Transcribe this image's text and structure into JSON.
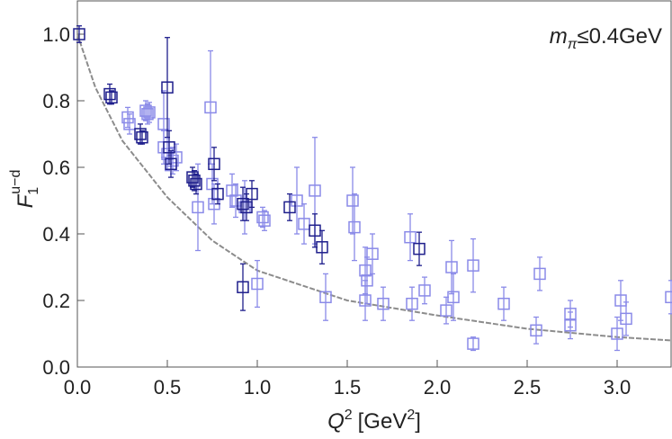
{
  "chart_data": {
    "type": "scatter",
    "xlabel": {
      "main": "Q",
      "sup": "2",
      "unit": "[GeV",
      "unit_sup": "2",
      "close": "]"
    },
    "ylabel": {
      "main": "F",
      "sub": "1",
      "sup": "u−d"
    },
    "annotation": {
      "main": "m",
      "sub": "π",
      "rest": "≤0.4GeV"
    },
    "xlim": [
      0,
      3.3
    ],
    "ylim": [
      0,
      1.1
    ],
    "xticks": [
      {
        "value": 0,
        "label": "0.0"
      },
      {
        "value": 0.5,
        "label": "0.5"
      },
      {
        "value": 1,
        "label": "1.0"
      },
      {
        "value": 1.5,
        "label": "1.5"
      },
      {
        "value": 2,
        "label": "2.0"
      },
      {
        "value": 2.5,
        "label": "2.5"
      },
      {
        "value": 3,
        "label": "3.0"
      }
    ],
    "yticks": [
      {
        "value": 0,
        "label": "0.0"
      },
      {
        "value": 0.2,
        "label": "0.2"
      },
      {
        "value": 0.4,
        "label": "0.4"
      },
      {
        "value": 0.6,
        "label": "0.6"
      },
      {
        "value": 0.8,
        "label": "0.8"
      },
      {
        "value": 1,
        "label": "1.0"
      }
    ],
    "grid": false,
    "series": [
      {
        "type": "line",
        "color": "#8c8c8c",
        "x": [
          0,
          0.1,
          0.25,
          0.5,
          0.75,
          1,
          1.5,
          2,
          2.5,
          3,
          3.3
        ],
        "values": [
          1,
          0.84,
          0.68,
          0.51,
          0.38,
          0.29,
          0.2,
          0.155,
          0.115,
          0.09,
          0.08
        ]
      },
      {
        "type": "scatter",
        "color": "#8a8ae8",
        "x": [
          0.28,
          0.29,
          0.38,
          0.39,
          0.4,
          0.48,
          0.48,
          0.5,
          0.53,
          0.55,
          0.67,
          0.74,
          0.75,
          0.76,
          0.86,
          0.88,
          0.93,
          1.0,
          1.03,
          1.04,
          1.22,
          1.26,
          1.32,
          1.38,
          1.53,
          1.54,
          1.6,
          1.61,
          1.6,
          1.64,
          1.7,
          1.85,
          1.86,
          1.93,
          2.05,
          2.08,
          2.09,
          2.2,
          2.2,
          2.37,
          2.55,
          2.57,
          2.74,
          2.74,
          3.0,
          3.02,
          3.05,
          3.3
        ],
        "values": [
          0.75,
          0.73,
          0.77,
          0.76,
          0.765,
          0.73,
          0.66,
          0.64,
          0.62,
          0.63,
          0.48,
          0.78,
          0.55,
          0.49,
          0.53,
          0.5,
          0.48,
          0.25,
          0.45,
          0.44,
          0.5,
          0.43,
          0.53,
          0.21,
          0.5,
          0.42,
          0.29,
          0.26,
          0.2,
          0.34,
          0.19,
          0.39,
          0.19,
          0.23,
          0.17,
          0.3,
          0.21,
          0.305,
          0.07,
          0.19,
          0.11,
          0.28,
          0.16,
          0.125,
          0.1,
          0.2,
          0.145,
          0.21
        ],
        "errors": [
          0.03,
          0.03,
          0.03,
          0.03,
          0.03,
          0.1,
          0.05,
          0.05,
          0.04,
          0.04,
          0.13,
          0.17,
          0.06,
          0.06,
          0.05,
          0.05,
          0.08,
          0.07,
          0.03,
          0.03,
          0.1,
          0.06,
          0.16,
          0.07,
          0.1,
          0.1,
          0.07,
          0.07,
          0.06,
          0.06,
          0.05,
          0.07,
          0.05,
          0.04,
          0.04,
          0.08,
          0.07,
          0.08,
          0.02,
          0.05,
          0.04,
          0.05,
          0.04,
          0.04,
          0.05,
          0.06,
          0.05,
          0.05
        ]
      },
      {
        "type": "scatter",
        "color": "#1e1e8c",
        "x": [
          0.01,
          0.18,
          0.19,
          0.35,
          0.36,
          0.5,
          0.51,
          0.52,
          0.64,
          0.65,
          0.66,
          0.76,
          0.78,
          0.92,
          0.94,
          0.97,
          0.92,
          1.18,
          1.32,
          1.36,
          1.9
        ],
        "values": [
          1.0,
          0.82,
          0.81,
          0.7,
          0.69,
          0.84,
          0.66,
          0.61,
          0.57,
          0.56,
          0.55,
          0.61,
          0.52,
          0.49,
          0.48,
          0.52,
          0.24,
          0.48,
          0.41,
          0.36,
          0.355
        ],
        "errors": [
          0.025,
          0.03,
          0.02,
          0.03,
          0.02,
          0.15,
          0.05,
          0.04,
          0.03,
          0.03,
          0.03,
          0.05,
          0.03,
          0.05,
          0.04,
          0.04,
          0.07,
          0.04,
          0.05,
          0.05,
          0.05
        ]
      }
    ]
  }
}
